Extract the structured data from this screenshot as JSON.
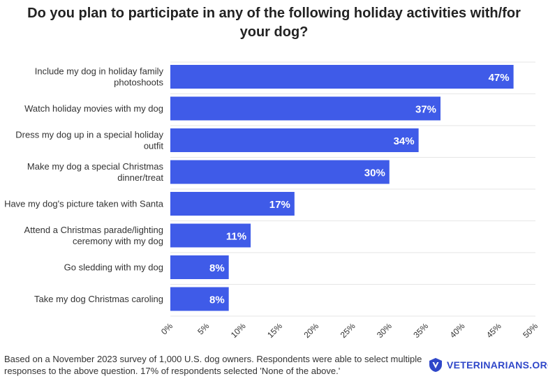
{
  "title_lines": [
    "Do you plan to participate in any of the following holiday activities with/for",
    "your dog?"
  ],
  "footnote_lines": [
    "Based on a November 2023 survey of 1,000 U.S. dog owners. Respondents were able to select multiple",
    "responses to the above question. 17% of respondents selected 'None of the above.'"
  ],
  "brand": {
    "name": "VETERINARIANS.ORG",
    "icon": "v-shield-logo-icon",
    "color": "#2f47c9"
  },
  "colors": {
    "bar": "#3f5be8",
    "grid": "#e6e6e6",
    "label": "#333333",
    "value_text": "#ffffff"
  },
  "chart_data": {
    "type": "bar",
    "orientation": "horizontal",
    "title": "Do you plan to participate in any of the following holiday activities with/for your dog?",
    "categories": [
      [
        "Include my dog in holiday family",
        "photoshoots"
      ],
      [
        "Watch holiday movies with my dog"
      ],
      [
        "Dress my dog up in a special holiday",
        "outfit"
      ],
      [
        "Make my dog a special Christmas",
        "dinner/treat"
      ],
      [
        "Have my dog's picture taken with Santa"
      ],
      [
        "Attend a Christmas parade/lighting",
        "ceremony with my dog"
      ],
      [
        "Go sledding with my dog"
      ],
      [
        "Take my dog Christmas caroling"
      ]
    ],
    "values": [
      47,
      37,
      34,
      30,
      17,
      11,
      8,
      8
    ],
    "value_labels": [
      "47%",
      "37%",
      "34%",
      "30%",
      "17%",
      "11%",
      "8%",
      "8%"
    ],
    "xlim": [
      0,
      50
    ],
    "xticks": [
      0,
      5,
      10,
      15,
      20,
      25,
      30,
      35,
      40,
      45,
      50
    ],
    "xtick_labels": [
      "0%",
      "5%",
      "10%",
      "15%",
      "20%",
      "25%",
      "30%",
      "35%",
      "40%",
      "45%",
      "50%"
    ],
    "xlabel": "",
    "ylabel": "",
    "grid": true,
    "legend": "none"
  }
}
